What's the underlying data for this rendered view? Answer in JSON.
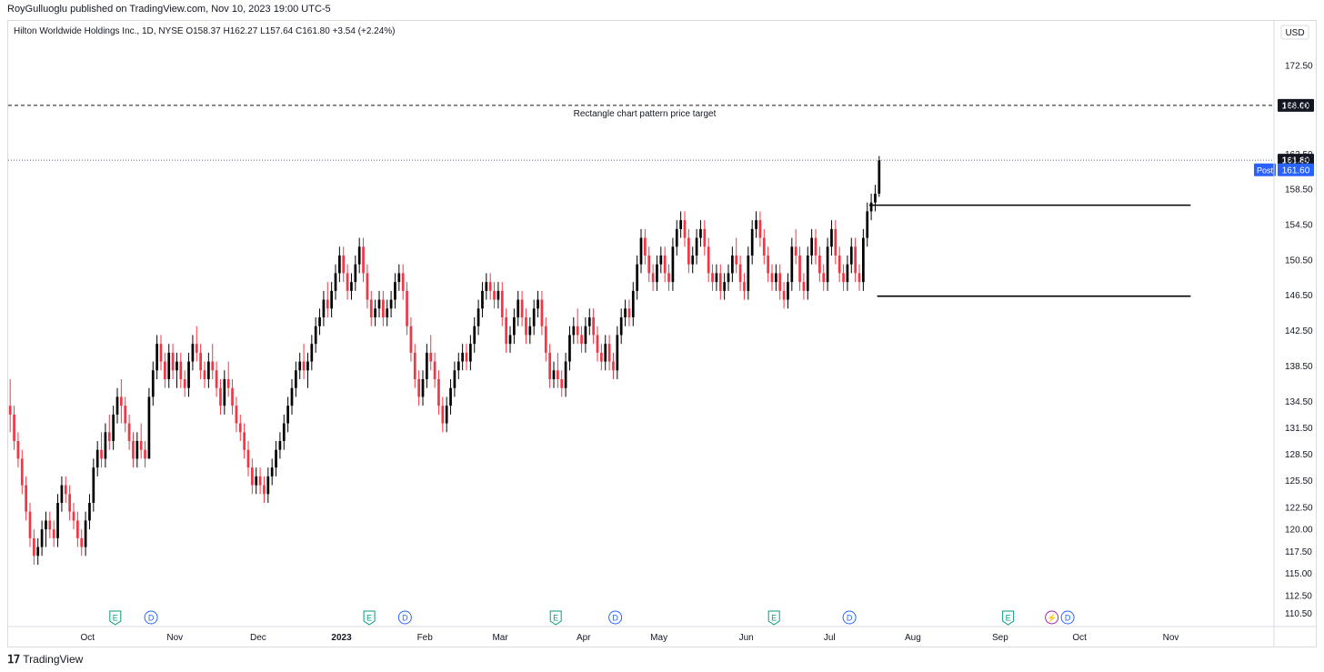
{
  "header": {
    "publisher": "RoyGulluoglu published on TradingView.com, Nov 10, 2023 19:00 UTC-5",
    "symbol_line": "Hilton Worldwide Holdings Inc., 1D, NYSE  O158.37  H162.27  L157.64  C161.80  +3.54 (+2.24%)"
  },
  "footer": {
    "brand": "TradingView"
  },
  "colors": {
    "up": "#000000",
    "down": "#f23645",
    "accent": "#2962ff",
    "event_e": "#089981",
    "event_d": "#2962ff"
  },
  "chart_data": {
    "type": "candlestick",
    "currency_label": "USD",
    "y_ticks": [
      "172.50",
      "168.00",
      "162.50",
      "161.80",
      "158.50",
      "154.50",
      "150.50",
      "146.50",
      "142.50",
      "138.50",
      "134.50",
      "131.50",
      "128.50",
      "125.50",
      "122.50",
      "120.00",
      "117.50",
      "115.00",
      "112.50",
      "110.50"
    ],
    "ylim": [
      109.0,
      175.5
    ],
    "x_ticks": [
      {
        "label": "Oct",
        "t": 20,
        "bold": false
      },
      {
        "label": "Nov",
        "t": 42,
        "bold": false
      },
      {
        "label": "Dec",
        "t": 63,
        "bold": false
      },
      {
        "label": "2023",
        "t": 84,
        "bold": true
      },
      {
        "label": "Feb",
        "t": 105,
        "bold": false
      },
      {
        "label": "Mar",
        "t": 124,
        "bold": false
      },
      {
        "label": "Apr",
        "t": 145,
        "bold": false
      },
      {
        "label": "May",
        "t": 164,
        "bold": false
      },
      {
        "label": "Jun",
        "t": 186,
        "bold": false
      },
      {
        "label": "Jul",
        "t": 207,
        "bold": false
      },
      {
        "label": "Aug",
        "t": 228,
        "bold": false
      },
      {
        "label": "Sep",
        "t": 250,
        "bold": false
      },
      {
        "label": "Oct",
        "t": 270,
        "bold": false
      },
      {
        "label": "Nov",
        "t": 293,
        "bold": false
      }
    ],
    "t_range": [
      0,
      319
    ],
    "candles": [
      [
        134,
        137,
        131,
        133
      ],
      [
        133,
        134,
        129,
        130
      ],
      [
        130,
        131,
        127,
        128
      ],
      [
        128,
        129,
        124,
        125
      ],
      [
        125,
        126,
        121,
        122
      ],
      [
        122,
        123,
        118,
        119
      ],
      [
        119,
        120,
        116,
        117
      ],
      [
        117,
        119,
        116,
        118
      ],
      [
        118,
        121,
        117,
        120
      ],
      [
        120,
        122,
        118,
        121
      ],
      [
        121,
        122,
        119,
        120
      ],
      [
        120,
        121,
        118,
        119
      ],
      [
        119,
        124,
        118,
        123
      ],
      [
        123,
        126,
        122,
        125
      ],
      [
        125,
        126,
        123,
        124
      ],
      [
        124,
        125,
        121,
        122
      ],
      [
        122,
        123,
        120,
        121
      ],
      [
        121,
        122,
        118,
        119
      ],
      [
        119,
        120,
        117,
        118
      ],
      [
        118,
        122,
        117,
        121
      ],
      [
        121,
        124,
        120,
        123
      ],
      [
        123,
        128,
        122,
        127
      ],
      [
        127,
        130,
        126,
        129
      ],
      [
        129,
        131,
        127,
        128
      ],
      [
        128,
        132,
        127,
        131
      ],
      [
        131,
        133,
        129,
        130
      ],
      [
        130,
        134,
        129,
        133
      ],
      [
        133,
        136,
        132,
        135
      ],
      [
        135,
        137,
        132,
        134
      ],
      [
        134,
        135,
        131,
        132
      ],
      [
        132,
        133,
        129,
        130
      ],
      [
        130,
        131,
        127,
        128
      ],
      [
        128,
        131,
        127,
        130
      ],
      [
        130,
        132,
        128,
        129
      ],
      [
        129,
        130,
        127,
        128
      ],
      [
        128,
        136,
        128,
        135
      ],
      [
        135,
        139,
        134,
        138
      ],
      [
        138,
        142,
        137,
        141
      ],
      [
        141,
        142,
        138,
        139
      ],
      [
        139,
        140,
        136,
        137
      ],
      [
        137,
        141,
        136,
        140
      ],
      [
        140,
        141,
        137,
        138
      ],
      [
        138,
        140,
        136,
        139
      ],
      [
        139,
        140,
        136,
        137
      ],
      [
        137,
        138,
        135,
        136
      ],
      [
        136,
        140,
        135,
        139
      ],
      [
        139,
        142,
        138,
        141
      ],
      [
        141,
        143,
        139,
        140
      ],
      [
        140,
        141,
        137,
        138
      ],
      [
        138,
        139,
        136,
        137
      ],
      [
        137,
        140,
        136,
        139
      ],
      [
        139,
        141,
        137,
        138
      ],
      [
        138,
        139,
        135,
        136
      ],
      [
        136,
        137,
        133,
        134
      ],
      [
        134,
        138,
        133,
        137
      ],
      [
        137,
        139,
        135,
        136
      ],
      [
        136,
        137,
        133,
        134
      ],
      [
        134,
        135,
        131,
        132
      ],
      [
        132,
        133,
        130,
        131
      ],
      [
        131,
        132,
        128,
        129
      ],
      [
        129,
        130,
        126,
        127
      ],
      [
        127,
        128,
        124,
        125
      ],
      [
        125,
        127,
        124,
        126
      ],
      [
        126,
        127,
        124,
        125
      ],
      [
        125,
        126,
        123,
        124
      ],
      [
        124,
        127,
        123,
        126
      ],
      [
        126,
        128,
        125,
        127
      ],
      [
        127,
        130,
        126,
        129
      ],
      [
        129,
        131,
        128,
        130
      ],
      [
        130,
        133,
        129,
        132
      ],
      [
        132,
        135,
        131,
        134
      ],
      [
        134,
        137,
        133,
        136
      ],
      [
        136,
        139,
        135,
        138
      ],
      [
        138,
        140,
        137,
        139
      ],
      [
        139,
        141,
        137,
        138
      ],
      [
        138,
        140,
        136,
        139
      ],
      [
        139,
        142,
        138,
        141
      ],
      [
        141,
        144,
        140,
        143
      ],
      [
        143,
        145,
        142,
        144
      ],
      [
        144,
        147,
        143,
        146
      ],
      [
        146,
        148,
        144,
        145
      ],
      [
        145,
        148,
        144,
        147
      ],
      [
        147,
        150,
        146,
        149
      ],
      [
        149,
        152,
        148,
        151
      ],
      [
        151,
        152,
        148,
        149
      ],
      [
        149,
        150,
        146,
        147
      ],
      [
        147,
        149,
        146,
        148
      ],
      [
        148,
        151,
        147,
        150
      ],
      [
        150,
        153,
        149,
        152
      ],
      [
        152,
        153,
        148,
        149
      ],
      [
        149,
        150,
        145,
        146
      ],
      [
        146,
        147,
        143,
        144
      ],
      [
        144,
        146,
        143,
        145
      ],
      [
        145,
        147,
        144,
        146
      ],
      [
        146,
        147,
        143,
        144
      ],
      [
        144,
        146,
        143,
        145
      ],
      [
        145,
        147,
        144,
        146
      ],
      [
        146,
        149,
        145,
        148
      ],
      [
        148,
        150,
        147,
        149
      ],
      [
        149,
        150,
        146,
        147
      ],
      [
        147,
        148,
        142,
        143
      ],
      [
        143,
        144,
        139,
        140
      ],
      [
        140,
        141,
        136,
        137
      ],
      [
        137,
        138,
        134,
        135
      ],
      [
        135,
        138,
        134,
        137
      ],
      [
        137,
        141,
        136,
        140
      ],
      [
        140,
        142,
        138,
        139
      ],
      [
        139,
        140,
        136,
        137
      ],
      [
        137,
        138,
        133,
        134
      ],
      [
        134,
        135,
        131,
        132
      ],
      [
        132,
        135,
        131,
        134
      ],
      [
        134,
        137,
        133,
        136
      ],
      [
        136,
        139,
        135,
        138
      ],
      [
        138,
        140,
        137,
        139
      ],
      [
        139,
        141,
        138,
        140
      ],
      [
        140,
        141,
        138,
        139
      ],
      [
        139,
        142,
        138,
        141
      ],
      [
        141,
        144,
        140,
        143
      ],
      [
        143,
        146,
        142,
        145
      ],
      [
        145,
        148,
        144,
        147
      ],
      [
        147,
        149,
        146,
        148
      ],
      [
        148,
        149,
        146,
        147
      ],
      [
        147,
        148,
        145,
        146
      ],
      [
        146,
        148,
        145,
        147
      ],
      [
        147,
        148,
        143,
        144
      ],
      [
        144,
        145,
        140,
        141
      ],
      [
        141,
        143,
        140,
        142
      ],
      [
        142,
        145,
        141,
        144
      ],
      [
        144,
        147,
        143,
        146
      ],
      [
        146,
        147,
        143,
        144
      ],
      [
        144,
        145,
        141,
        142
      ],
      [
        142,
        144,
        141,
        143
      ],
      [
        143,
        146,
        142,
        145
      ],
      [
        145,
        147,
        144,
        146
      ],
      [
        146,
        147,
        142,
        143
      ],
      [
        143,
        144,
        139,
        140
      ],
      [
        140,
        141,
        136,
        137
      ],
      [
        137,
        139,
        136,
        138
      ],
      [
        138,
        140,
        136,
        137
      ],
      [
        137,
        138,
        135,
        136
      ],
      [
        136,
        140,
        135,
        139
      ],
      [
        139,
        143,
        138,
        142
      ],
      [
        142,
        144,
        141,
        143
      ],
      [
        143,
        145,
        141,
        142
      ],
      [
        142,
        143,
        140,
        141
      ],
      [
        141,
        144,
        140,
        143
      ],
      [
        143,
        145,
        142,
        144
      ],
      [
        144,
        145,
        141,
        142
      ],
      [
        142,
        143,
        139,
        140
      ],
      [
        140,
        141,
        138,
        139
      ],
      [
        139,
        142,
        138,
        141
      ],
      [
        141,
        142,
        138,
        139
      ],
      [
        139,
        140,
        137,
        138
      ],
      [
        138,
        143,
        137,
        142
      ],
      [
        142,
        145,
        141,
        144
      ],
      [
        144,
        146,
        143,
        145
      ],
      [
        145,
        146,
        143,
        144
      ],
      [
        144,
        148,
        143,
        147
      ],
      [
        147,
        151,
        146,
        150
      ],
      [
        150,
        154,
        149,
        153
      ],
      [
        153,
        154,
        150,
        151
      ],
      [
        151,
        152,
        148,
        149
      ],
      [
        149,
        150,
        147,
        148
      ],
      [
        148,
        151,
        147,
        150
      ],
      [
        150,
        152,
        149,
        151
      ],
      [
        151,
        152,
        148,
        149
      ],
      [
        149,
        150,
        147,
        148
      ],
      [
        148,
        153,
        147,
        152
      ],
      [
        152,
        155,
        151,
        154
      ],
      [
        154,
        156,
        153,
        155
      ],
      [
        155,
        156,
        152,
        153
      ],
      [
        153,
        154,
        149,
        150
      ],
      [
        150,
        152,
        149,
        151
      ],
      [
        151,
        154,
        150,
        153
      ],
      [
        153,
        155,
        152,
        154
      ],
      [
        154,
        155,
        151,
        152
      ],
      [
        152,
        153,
        148,
        149
      ],
      [
        149,
        150,
        147,
        148
      ],
      [
        148,
        150,
        147,
        149
      ],
      [
        149,
        150,
        146,
        147
      ],
      [
        147,
        149,
        146,
        148
      ],
      [
        148,
        150,
        147,
        149
      ],
      [
        149,
        152,
        148,
        151
      ],
      [
        151,
        153,
        149,
        150
      ],
      [
        150,
        151,
        147,
        148
      ],
      [
        148,
        149,
        146,
        147
      ],
      [
        147,
        152,
        146,
        151
      ],
      [
        151,
        155,
        150,
        154
      ],
      [
        154,
        156,
        153,
        155
      ],
      [
        155,
        156,
        152,
        153
      ],
      [
        153,
        154,
        150,
        151
      ],
      [
        151,
        152,
        148,
        149
      ],
      [
        149,
        150,
        147,
        148
      ],
      [
        148,
        150,
        147,
        149
      ],
      [
        149,
        150,
        146,
        147
      ],
      [
        147,
        148,
        145,
        146
      ],
      [
        146,
        149,
        145,
        148
      ],
      [
        148,
        153,
        147,
        152
      ],
      [
        152,
        154,
        150,
        151
      ],
      [
        151,
        152,
        147,
        148
      ],
      [
        148,
        149,
        146,
        147
      ],
      [
        147,
        152,
        146,
        151
      ],
      [
        151,
        154,
        150,
        153
      ],
      [
        153,
        154,
        150,
        151
      ],
      [
        151,
        152,
        148,
        149
      ],
      [
        149,
        150,
        147,
        148
      ],
      [
        148,
        153,
        147,
        152
      ],
      [
        152,
        155,
        151,
        154
      ],
      [
        154,
        155,
        150,
        151
      ],
      [
        151,
        152,
        148,
        149
      ],
      [
        149,
        150,
        147,
        148
      ],
      [
        148,
        151,
        147,
        150
      ],
      [
        150,
        153,
        149,
        152
      ],
      [
        152,
        153,
        148,
        149
      ],
      [
        149,
        150,
        147,
        148
      ],
      [
        148,
        154,
        147,
        153
      ],
      [
        153,
        157,
        152,
        156
      ],
      [
        156,
        158,
        155,
        157
      ],
      [
        157,
        159,
        156,
        158
      ],
      [
        158,
        162.27,
        157.64,
        161.8
      ]
    ],
    "lines": [
      {
        "kind": "dashed",
        "value": 168.0,
        "label": "Rectangle chart pattern price target"
      },
      {
        "kind": "dotted",
        "value": 161.8
      }
    ],
    "rectangle_pattern": {
      "top": 156.7,
      "bottom": 146.4
    },
    "price_labels": [
      {
        "text": "168.00",
        "value": 168.0,
        "style": "black"
      },
      {
        "text": "161.80",
        "value": 161.8,
        "style": "black"
      }
    ],
    "post_label": {
      "tag": "Post",
      "price": "161.60",
      "value": 160.7
    },
    "events": [
      {
        "letter": "E",
        "t": 27,
        "type": "earnings"
      },
      {
        "letter": "D",
        "t": 36,
        "type": "dividend"
      },
      {
        "letter": "E",
        "t": 91,
        "type": "earnings"
      },
      {
        "letter": "D",
        "t": 100,
        "type": "dividend"
      },
      {
        "letter": "E",
        "t": 138,
        "type": "earnings"
      },
      {
        "letter": "D",
        "t": 153,
        "type": "dividend"
      },
      {
        "letter": "E",
        "t": 193,
        "type": "earnings"
      },
      {
        "letter": "D",
        "t": 212,
        "type": "dividend"
      },
      {
        "letter": "E",
        "t": 252,
        "type": "earnings"
      },
      {
        "letter": "⚡",
        "t": 263,
        "type": "split"
      },
      {
        "letter": "D",
        "t": 267,
        "type": "dividend"
      }
    ]
  }
}
